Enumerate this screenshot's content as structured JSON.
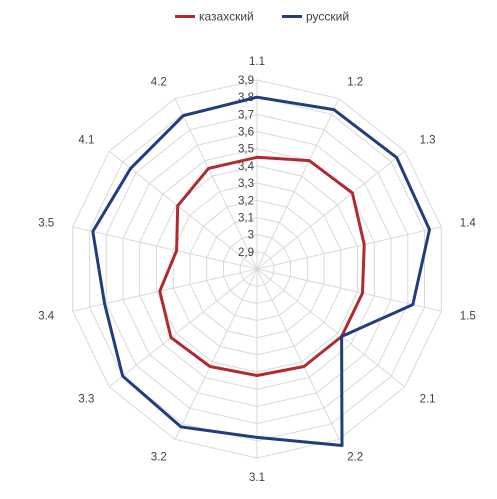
{
  "chart_data": {
    "type": "radar",
    "categories": [
      "1.1",
      "1.2",
      "1.3",
      "1.4",
      "1.5",
      "2.1",
      "2.2",
      "3.1",
      "3.2",
      "3.3",
      "3.4",
      "3.5",
      "4.1",
      "4.2"
    ],
    "series": [
      {
        "name": "казахский",
        "color": "#b22a2e",
        "values": [
          3.45,
          3.5,
          3.51,
          3.44,
          3.43,
          3.43,
          3.43,
          3.42,
          3.43,
          3.44,
          3.38,
          3.28,
          3.39,
          3.45
        ]
      },
      {
        "name": "русский",
        "color": "#203e7e",
        "values": [
          3.8,
          3.83,
          3.84,
          3.83,
          3.73,
          3.43,
          3.94,
          3.78,
          3.82,
          3.8,
          3.71,
          3.78,
          3.74,
          3.79
        ]
      }
    ],
    "rlim": [
      2.8,
      3.9
    ],
    "tick_values": [
      2.9,
      3,
      3.1,
      3.2,
      3.3,
      3.4,
      3.5,
      3.6,
      3.7,
      3.8,
      3.9
    ],
    "tick_labels": [
      "2,9",
      "3",
      "3,1",
      "3,2",
      "3,3",
      "3,4",
      "3,5",
      "3,6",
      "3,7",
      "3,8",
      "3,9"
    ],
    "grid": true,
    "legend_position": "top"
  }
}
